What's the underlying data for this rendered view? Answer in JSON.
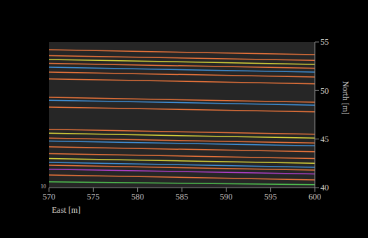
{
  "chart_data": {
    "type": "line",
    "x_label": "East [m]",
    "y_label": "North [m]",
    "annotation": "10",
    "x": [
      570,
      600
    ],
    "xlim": [
      570,
      600
    ],
    "xticks": [
      570,
      575,
      580,
      585,
      590,
      595,
      600
    ],
    "ylim": [
      40,
      55
    ],
    "yticks": [
      40,
      45,
      50,
      55
    ],
    "grid": false,
    "series": [
      {
        "color": "#e8733a",
        "values": [
          54.2,
          53.7
        ]
      },
      {
        "color": "#e8733a",
        "values": [
          53.6,
          53.1
        ]
      },
      {
        "color": "#d9d43a",
        "values": [
          53.2,
          52.7
        ]
      },
      {
        "color": "#e8733a",
        "values": [
          52.8,
          52.3
        ]
      },
      {
        "color": "#3f8fd6",
        "values": [
          52.4,
          51.9
        ]
      },
      {
        "color": "#e8733a",
        "values": [
          51.9,
          51.4
        ]
      },
      {
        "color": "#e8733a",
        "values": [
          51.2,
          50.7
        ]
      },
      {
        "color": "#e8733a",
        "values": [
          49.3,
          48.8
        ]
      },
      {
        "color": "#3f8fd6",
        "values": [
          49.0,
          48.5
        ]
      },
      {
        "color": "#e8733a",
        "values": [
          48.3,
          47.8
        ]
      },
      {
        "color": "#e8733a",
        "values": [
          46.0,
          45.5
        ]
      },
      {
        "color": "#d9d43a",
        "values": [
          45.6,
          45.1
        ]
      },
      {
        "color": "#e8733a",
        "values": [
          45.1,
          44.6
        ]
      },
      {
        "color": "#3f8fd6",
        "values": [
          44.8,
          44.3
        ]
      },
      {
        "color": "#e8733a",
        "values": [
          44.2,
          43.7
        ]
      },
      {
        "color": "#e8733a",
        "values": [
          43.5,
          43.0
        ]
      },
      {
        "color": "#d9d43a",
        "values": [
          43.0,
          42.5
        ]
      },
      {
        "color": "#3f8fd6",
        "values": [
          42.6,
          42.1
        ]
      },
      {
        "color": "#e8733a",
        "values": [
          42.3,
          41.8
        ]
      },
      {
        "color": "#b03fc9",
        "values": [
          41.9,
          41.4
        ]
      },
      {
        "color": "#e8733a",
        "values": [
          41.3,
          40.8
        ]
      },
      {
        "color": "#4fbf4f",
        "values": [
          40.6,
          40.3
        ]
      }
    ]
  }
}
